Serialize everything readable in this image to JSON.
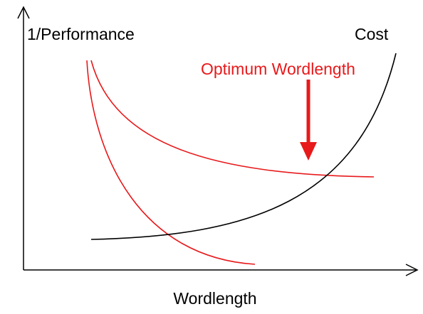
{
  "labels": {
    "y_axis": "1/Performance",
    "cost": "Cost",
    "optimum": "Optimum Wordlength",
    "x_axis": "Wordlength"
  }
}
